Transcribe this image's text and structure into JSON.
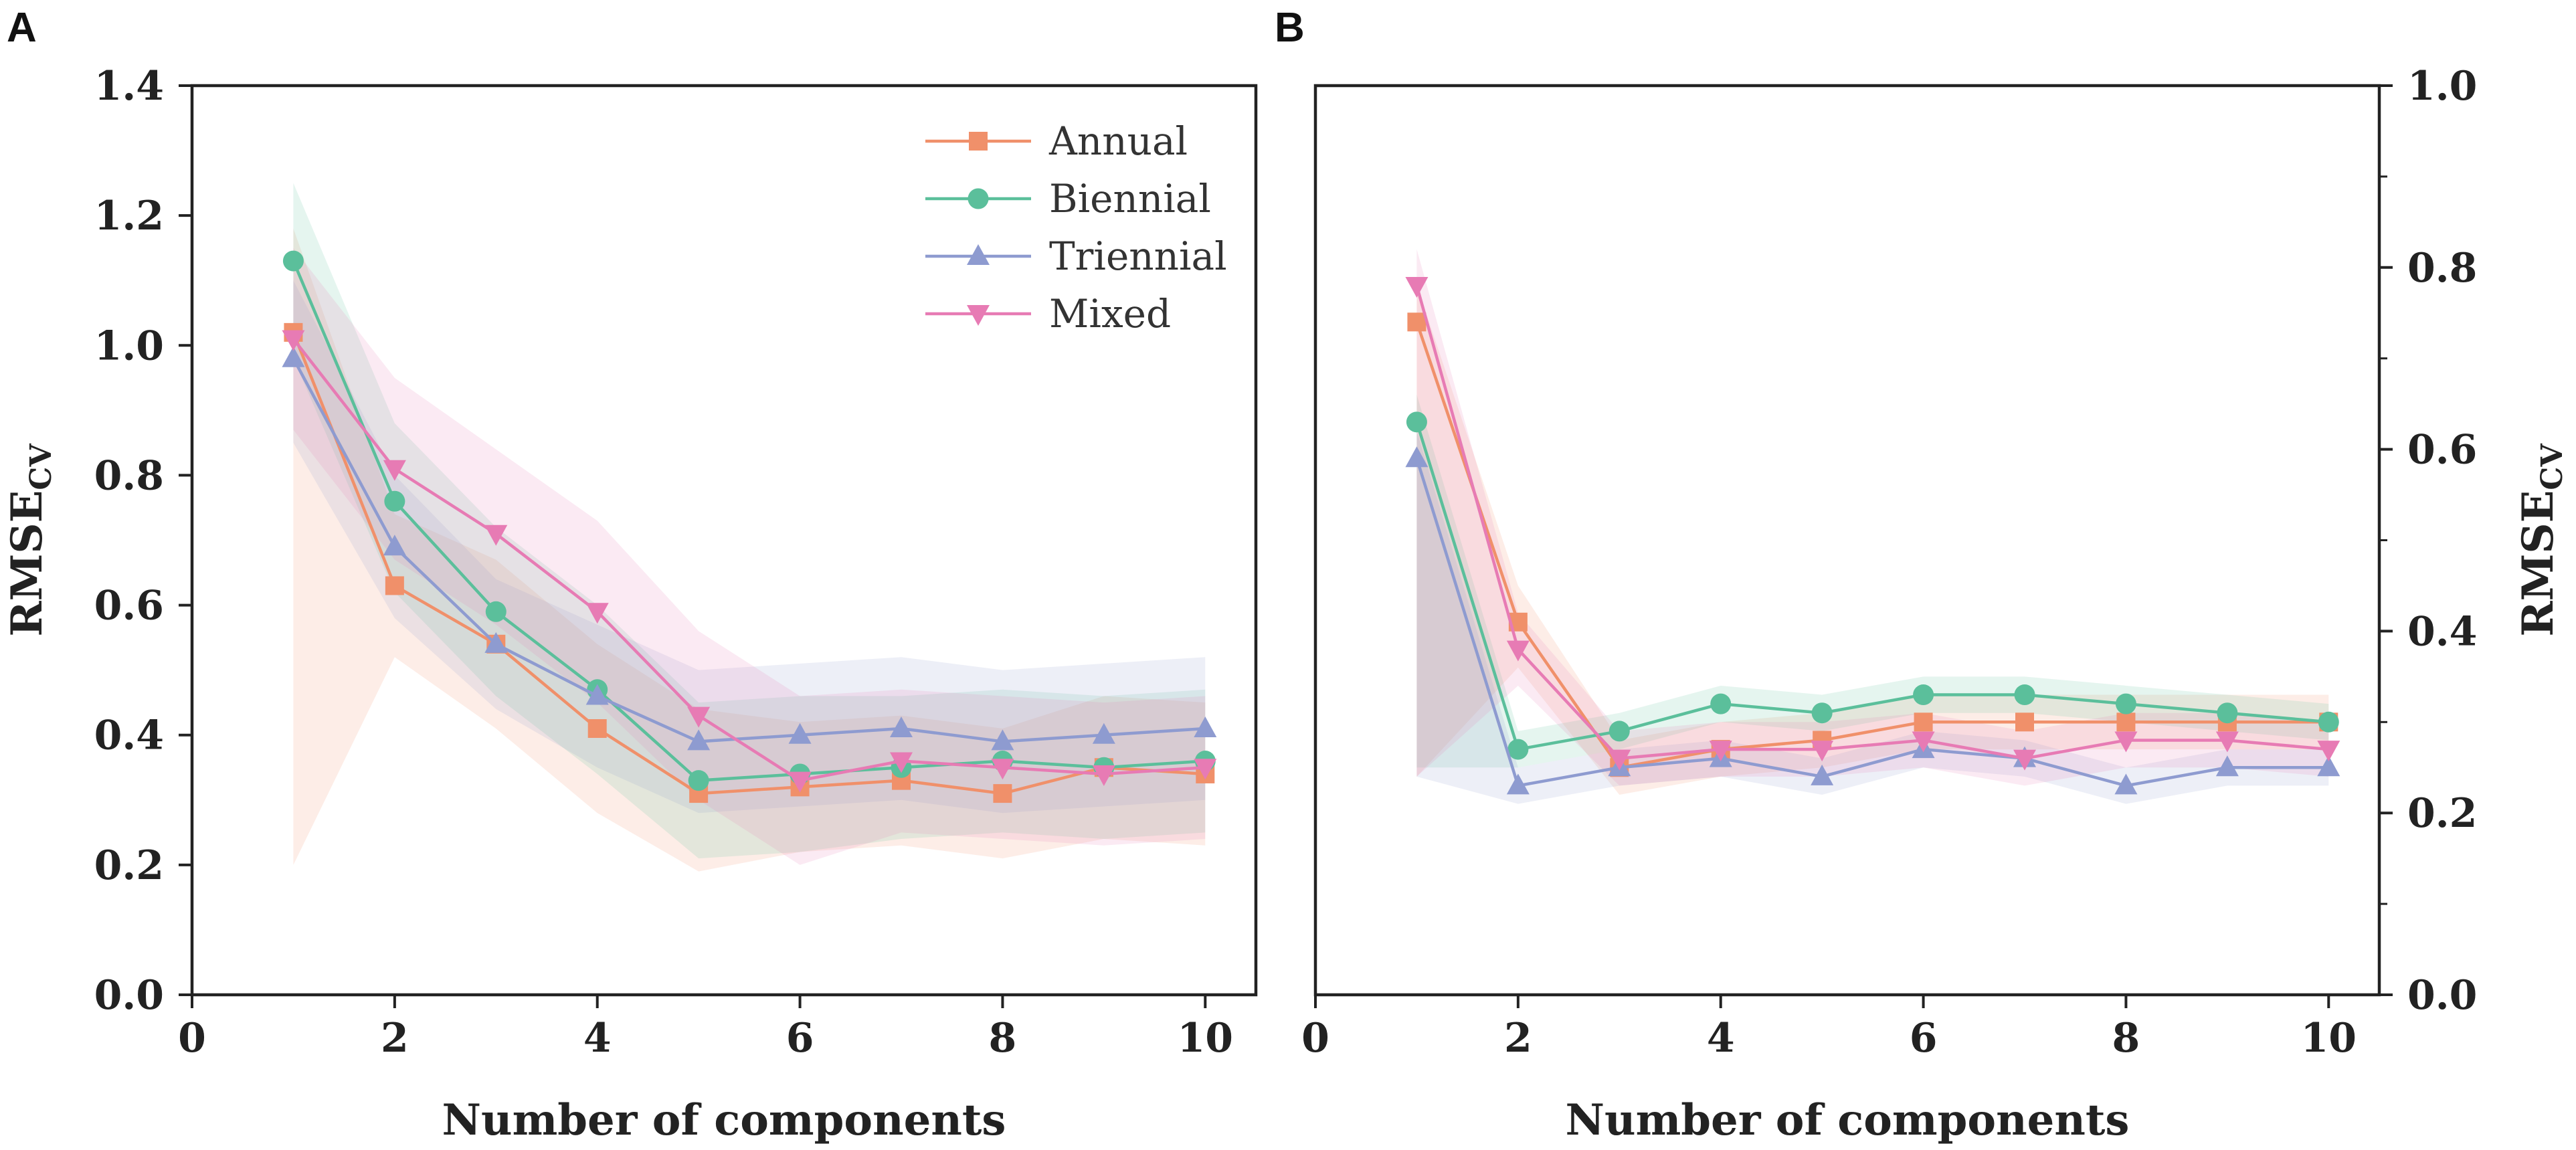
{
  "figure": {
    "panel_labels": [
      "A",
      "B"
    ]
  },
  "chart_data": [
    {
      "type": "line",
      "panel": "A",
      "title": "",
      "xlabel": "Number of components",
      "ylabel_main": "RMSE",
      "ylabel_sub": "CV",
      "y_axis_side": "left",
      "xlim": [
        0,
        10.5
      ],
      "ylim": [
        0,
        1.4
      ],
      "xticks": [
        0,
        2,
        4,
        6,
        8,
        10
      ],
      "yticks": [
        0.0,
        0.2,
        0.4,
        0.6,
        0.8,
        1.0,
        1.2,
        1.4
      ],
      "ytick_labels": [
        "0.0",
        "0.2",
        "0.4",
        "0.6",
        "0.8",
        "1.0",
        "1.2",
        "1.4"
      ],
      "legend": {
        "placement": "top-right"
      },
      "x": [
        1,
        2,
        3,
        4,
        5,
        6,
        7,
        8,
        9,
        10
      ],
      "series": [
        {
          "name": "Annual",
          "color": "#f0906a",
          "marker": "square",
          "values": [
            1.02,
            0.63,
            0.54,
            0.41,
            0.31,
            0.32,
            0.33,
            0.31,
            0.35,
            0.34
          ],
          "band_low": [
            0.2,
            0.52,
            0.41,
            0.28,
            0.19,
            0.22,
            0.23,
            0.21,
            0.24,
            0.23
          ],
          "band_high": [
            1.18,
            0.74,
            0.67,
            0.54,
            0.44,
            0.42,
            0.43,
            0.41,
            0.46,
            0.45
          ]
        },
        {
          "name": "Biennial",
          "color": "#5bbf9b",
          "marker": "circle",
          "values": [
            1.13,
            0.76,
            0.59,
            0.47,
            0.33,
            0.34,
            0.35,
            0.36,
            0.35,
            0.36
          ],
          "band_low": [
            0.98,
            0.62,
            0.46,
            0.34,
            0.21,
            0.22,
            0.24,
            0.25,
            0.24,
            0.25
          ],
          "band_high": [
            1.25,
            0.88,
            0.72,
            0.6,
            0.45,
            0.46,
            0.46,
            0.47,
            0.46,
            0.47
          ]
        },
        {
          "name": "Triennial",
          "color": "#8e9bd0",
          "marker": "triangle-up",
          "values": [
            0.98,
            0.69,
            0.54,
            0.46,
            0.39,
            0.4,
            0.41,
            0.39,
            0.4,
            0.41
          ],
          "band_low": [
            0.85,
            0.58,
            0.44,
            0.35,
            0.28,
            0.29,
            0.3,
            0.28,
            0.29,
            0.3
          ],
          "band_high": [
            1.1,
            0.8,
            0.64,
            0.57,
            0.5,
            0.51,
            0.52,
            0.5,
            0.51,
            0.52
          ]
        },
        {
          "name": "Mixed",
          "color": "#e77bb4",
          "marker": "triangle-down",
          "values": [
            1.01,
            0.81,
            0.71,
            0.59,
            0.43,
            0.33,
            0.36,
            0.35,
            0.34,
            0.35
          ],
          "band_low": [
            0.87,
            0.67,
            0.57,
            0.45,
            0.3,
            0.2,
            0.25,
            0.24,
            0.23,
            0.24
          ],
          "band_high": [
            1.15,
            0.95,
            0.84,
            0.73,
            0.56,
            0.46,
            0.47,
            0.46,
            0.45,
            0.46
          ]
        }
      ]
    },
    {
      "type": "line",
      "panel": "B",
      "title": "",
      "xlabel": "Number of components",
      "ylabel_main": "RMSE",
      "ylabel_sub": "CV",
      "y_axis_side": "right",
      "xlim": [
        0,
        10.5
      ],
      "ylim": [
        0,
        1.0
      ],
      "xticks": [
        0,
        2,
        4,
        6,
        8,
        10
      ],
      "yticks": [
        0.0,
        0.2,
        0.4,
        0.6,
        0.8,
        1.0
      ],
      "ytick_labels": [
        "0.0",
        "0.2",
        "0.4",
        "0.6",
        "0.8",
        "1.0"
      ],
      "yminor": [
        0.1,
        0.3,
        0.5,
        0.7,
        0.9
      ],
      "x": [
        1,
        2,
        3,
        4,
        5,
        6,
        7,
        8,
        9,
        10
      ],
      "series": [
        {
          "name": "Annual",
          "color": "#f0906a",
          "marker": "square",
          "values": [
            0.74,
            0.41,
            0.25,
            0.27,
            0.28,
            0.3,
            0.3,
            0.3,
            0.3,
            0.3
          ],
          "band_low": [
            0.24,
            0.36,
            0.22,
            0.24,
            0.25,
            0.27,
            0.27,
            0.27,
            0.27,
            0.27
          ],
          "band_high": [
            0.78,
            0.45,
            0.28,
            0.3,
            0.31,
            0.33,
            0.33,
            0.33,
            0.33,
            0.33
          ]
        },
        {
          "name": "Biennial",
          "color": "#5bbf9b",
          "marker": "circle",
          "values": [
            0.63,
            0.27,
            0.29,
            0.32,
            0.31,
            0.33,
            0.33,
            0.32,
            0.31,
            0.3
          ],
          "band_low": [
            0.25,
            0.25,
            0.27,
            0.3,
            0.29,
            0.31,
            0.31,
            0.3,
            0.29,
            0.28
          ],
          "band_high": [
            0.66,
            0.29,
            0.31,
            0.34,
            0.33,
            0.35,
            0.35,
            0.34,
            0.33,
            0.32
          ]
        },
        {
          "name": "Triennial",
          "color": "#8e9bd0",
          "marker": "triangle-up",
          "values": [
            0.59,
            0.23,
            0.25,
            0.26,
            0.24,
            0.27,
            0.26,
            0.23,
            0.25,
            0.25
          ],
          "band_low": [
            0.24,
            0.21,
            0.23,
            0.24,
            0.22,
            0.25,
            0.24,
            0.21,
            0.23,
            0.23
          ],
          "band_high": [
            0.62,
            0.25,
            0.27,
            0.28,
            0.26,
            0.29,
            0.28,
            0.25,
            0.27,
            0.27
          ]
        },
        {
          "name": "Mixed",
          "color": "#e77bb4",
          "marker": "triangle-down",
          "values": [
            0.78,
            0.38,
            0.26,
            0.27,
            0.27,
            0.28,
            0.26,
            0.28,
            0.28,
            0.27
          ],
          "band_low": [
            0.24,
            0.34,
            0.23,
            0.24,
            0.24,
            0.25,
            0.23,
            0.25,
            0.25,
            0.24
          ],
          "band_high": [
            0.82,
            0.42,
            0.29,
            0.3,
            0.3,
            0.31,
            0.29,
            0.31,
            0.31,
            0.3
          ]
        }
      ]
    }
  ]
}
